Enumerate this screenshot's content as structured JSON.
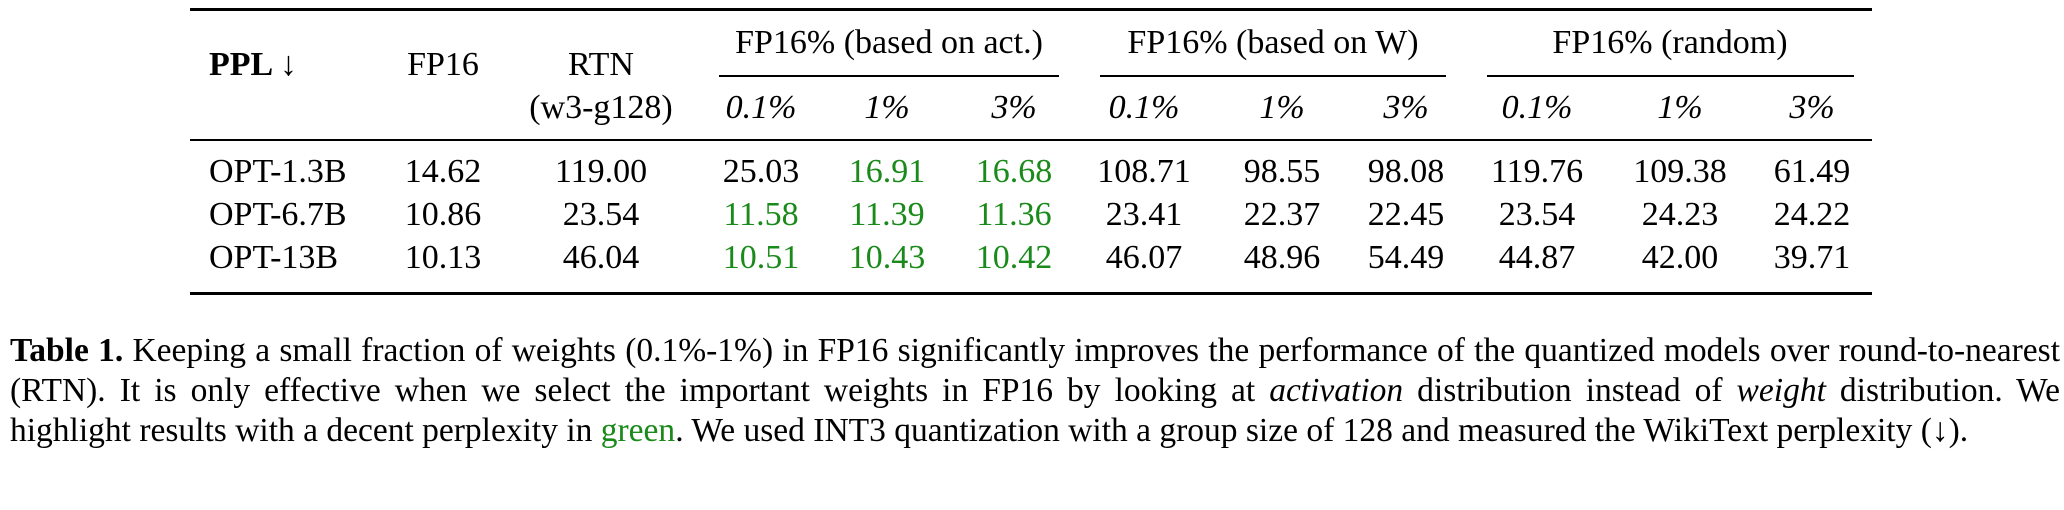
{
  "table": {
    "header": {
      "ppl_label": "PPL ↓",
      "fp16": "FP16",
      "rtn_line1": "RTN",
      "rtn_line2": "(w3-g128)",
      "groups": [
        {
          "label": "FP16% (based on act.)",
          "subs": [
            "0.1%",
            "1%",
            "3%"
          ]
        },
        {
          "label": "FP16% (based on W)",
          "subs": [
            "0.1%",
            "1%",
            "3%"
          ]
        },
        {
          "label": "FP16% (random)",
          "subs": [
            "0.1%",
            "1%",
            "3%"
          ]
        }
      ]
    },
    "rows": [
      {
        "model": "OPT-1.3B",
        "fp16": "14.62",
        "rtn": "119.00",
        "act": [
          "25.03",
          "16.91",
          "16.68"
        ],
        "w": [
          "108.71",
          "98.55",
          "98.08"
        ],
        "random": [
          "119.76",
          "109.38",
          "61.49"
        ],
        "act_highlight": [
          false,
          true,
          true
        ]
      },
      {
        "model": "OPT-6.7B",
        "fp16": "10.86",
        "rtn": "23.54",
        "act": [
          "11.58",
          "11.39",
          "11.36"
        ],
        "w": [
          "23.41",
          "22.37",
          "22.45"
        ],
        "random": [
          "23.54",
          "24.23",
          "24.22"
        ],
        "act_highlight": [
          true,
          true,
          true
        ]
      },
      {
        "model": "OPT-13B",
        "fp16": "10.13",
        "rtn": "46.04",
        "act": [
          "10.51",
          "10.43",
          "10.42"
        ],
        "w": [
          "46.07",
          "48.96",
          "54.49"
        ],
        "random": [
          "44.87",
          "42.00",
          "39.71"
        ],
        "act_highlight": [
          true,
          true,
          true
        ]
      }
    ],
    "highlight_color": "#1a8a1a"
  },
  "caption": {
    "label": "Table 1.",
    "part1": " Keeping a small fraction of weights (0.1%-1%) in FP16 significantly improves the performance of the quantized models over round-to-nearest (RTN). It is only effective when we select the important weights in FP16 by looking at ",
    "em1": "activation",
    "part2": " distribution instead of ",
    "em2": "weight",
    "part3": " distribution. We highlight results with a decent perplexity in ",
    "green_word": "green",
    "part4": ". We used INT3 quantization with a group size of 128 and measured the WikiText perplexity (↓)."
  }
}
